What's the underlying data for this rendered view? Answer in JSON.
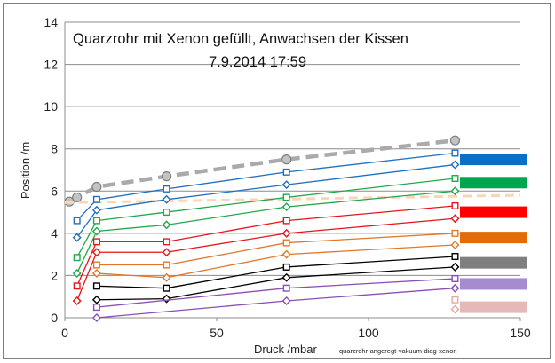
{
  "chart_data": {
    "type": "line",
    "title": "Quarzrohr mit Xenon gefüllt, Anwachsen der Kissen",
    "subtitle": "7.9.2014   17:59",
    "xlabel": "Druck /mbar",
    "ylabel": "Position /m",
    "footnote": "quarzrohr-angeregt-vakuum-diag-xenon",
    "xlim": [
      0,
      150
    ],
    "ylim": [
      0,
      14
    ],
    "x_ticks": [
      "0",
      "50",
      "100",
      "150"
    ],
    "y_ticks": [
      "0",
      "2",
      "4",
      "6",
      "8",
      "10",
      "12",
      "14"
    ],
    "grid": "horizontal",
    "series": [
      {
        "color": "#aaaaaa",
        "marker": "circle",
        "style": "dash",
        "points": [
          [
            1.5,
            5.5
          ],
          [
            4,
            5.7
          ],
          [
            10.5,
            6.2
          ],
          [
            33.5,
            6.7
          ],
          [
            73,
            7.5
          ],
          [
            128.5,
            8.4
          ]
        ]
      },
      {
        "color": "#fbd5b5",
        "marker": "none",
        "style": "dash",
        "points": [
          [
            0,
            5.45
          ],
          [
            150,
            5.8
          ]
        ]
      },
      {
        "color": "#1f6fbf",
        "marker": "square",
        "style": "solid",
        "points": [
          [
            4,
            4.6
          ],
          [
            10.5,
            5.6
          ],
          [
            33.5,
            6.1
          ],
          [
            73,
            6.9
          ],
          [
            128.5,
            7.8
          ]
        ]
      },
      {
        "color": "#1f6fbf",
        "marker": "diamond",
        "style": "solid",
        "points": [
          [
            4,
            3.8
          ],
          [
            10.5,
            5.1
          ],
          [
            33.5,
            5.6
          ],
          [
            73,
            6.3
          ],
          [
            128.5,
            7.25
          ]
        ]
      },
      {
        "color": "#22a84a",
        "marker": "square",
        "style": "solid",
        "points": [
          [
            4,
            2.85
          ],
          [
            10.5,
            4.6
          ],
          [
            33.5,
            5.0
          ],
          [
            73,
            5.7
          ],
          [
            128.5,
            6.6
          ]
        ]
      },
      {
        "color": "#22a84a",
        "marker": "diamond",
        "style": "solid",
        "points": [
          [
            4,
            2.1
          ],
          [
            10.5,
            4.1
          ],
          [
            33.5,
            4.4
          ],
          [
            73,
            5.25
          ],
          [
            128.5,
            6.0
          ]
        ]
      },
      {
        "color": "#e8151b",
        "marker": "square",
        "style": "solid",
        "points": [
          [
            4,
            1.5
          ],
          [
            10.5,
            3.6
          ],
          [
            33.5,
            3.6
          ],
          [
            73,
            4.6
          ],
          [
            128.5,
            5.3
          ]
        ]
      },
      {
        "color": "#e8151b",
        "marker": "diamond",
        "style": "solid",
        "points": [
          [
            4,
            0.8
          ],
          [
            10.5,
            3.1
          ],
          [
            33.5,
            3.1
          ],
          [
            73,
            4.0
          ],
          [
            128.5,
            4.7
          ]
        ]
      },
      {
        "color": "#e2772a",
        "marker": "square",
        "style": "solid",
        "points": [
          [
            10.5,
            2.5
          ],
          [
            33.5,
            2.5
          ],
          [
            73,
            3.55
          ],
          [
            128.5,
            4.0
          ]
        ]
      },
      {
        "color": "#e2772a",
        "marker": "diamond",
        "style": "solid",
        "points": [
          [
            10.5,
            2.1
          ],
          [
            33.5,
            1.9
          ],
          [
            73,
            3.0
          ],
          [
            128.5,
            3.45
          ]
        ]
      },
      {
        "color": "#000000",
        "marker": "square",
        "style": "solid",
        "points": [
          [
            10.5,
            1.5
          ],
          [
            33.5,
            1.4
          ],
          [
            73,
            2.4
          ],
          [
            128.5,
            2.9
          ]
        ]
      },
      {
        "color": "#000000",
        "marker": "diamond",
        "style": "solid",
        "points": [
          [
            10.5,
            0.85
          ],
          [
            33.5,
            0.9
          ],
          [
            73,
            1.9
          ],
          [
            128.5,
            2.4
          ]
        ]
      },
      {
        "color": "#8a4fb5",
        "marker": "square",
        "style": "solid",
        "points": [
          [
            10.5,
            0.5
          ],
          [
            73,
            1.4
          ],
          [
            128.5,
            1.85
          ]
        ]
      },
      {
        "color": "#8a4fb5",
        "marker": "diamond",
        "style": "solid",
        "points": [
          [
            10.5,
            0.0
          ],
          [
            73,
            0.8
          ],
          [
            128.5,
            1.4
          ]
        ]
      },
      {
        "color": "#e6a8a1",
        "marker": "square",
        "style": "solid",
        "points": [
          [
            128.5,
            0.85
          ]
        ]
      },
      {
        "color": "#e6a8a1",
        "marker": "diamond",
        "style": "solid",
        "points": [
          [
            128.5,
            0.4
          ]
        ]
      }
    ],
    "legend_bars": [
      {
        "color": "#0b6fc6",
        "y": 7.5
      },
      {
        "color": "#00a550",
        "y": 6.4
      },
      {
        "color": "#ff0000",
        "y": 5.0
      },
      {
        "color": "#e36c0a",
        "y": 3.8
      },
      {
        "color": "#7f7f7f",
        "y": 2.6
      },
      {
        "color": "#a68bcf",
        "y": 1.6
      },
      {
        "color": "#e6b8b7",
        "y": 0.5
      }
    ]
  }
}
